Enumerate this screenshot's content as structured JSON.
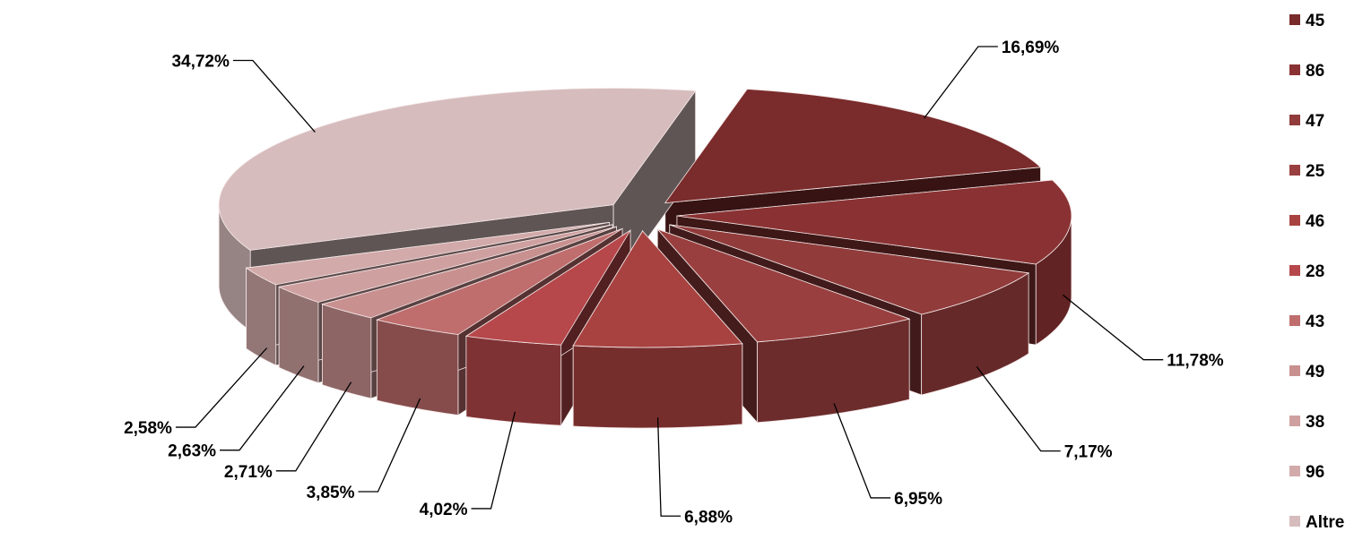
{
  "chart_data": {
    "type": "pie",
    "title": "",
    "categories": [
      "45",
      "86",
      "47",
      "25",
      "46",
      "28",
      "43",
      "49",
      "38",
      "96",
      "Altre"
    ],
    "values": [
      16.69,
      11.78,
      7.17,
      6.95,
      6.88,
      4.02,
      3.85,
      2.71,
      2.63,
      2.58,
      34.72
    ],
    "data_labels": [
      "16,69%",
      "11,78%",
      "7,17%",
      "6,95%",
      "6,88%",
      "4,02%",
      "3,85%",
      "2,71%",
      "2,63%",
      "2,58%",
      "34,72%"
    ],
    "colors": [
      "#7a2b2b",
      "#8a3233",
      "#913b3b",
      "#9a3f3f",
      "#a84240",
      "#b6474a",
      "#bf6d6d",
      "#c99090",
      "#cfa0a0",
      "#d2aaaa",
      "#d6bcbd"
    ],
    "legend_position": "right",
    "exploded": true,
    "style": "3d"
  }
}
